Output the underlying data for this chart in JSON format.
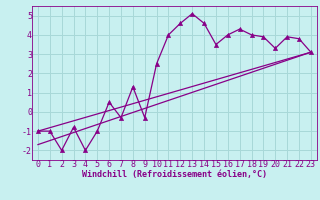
{
  "bg_color": "#c8f0f0",
  "grid_color": "#a8d8d8",
  "line_color": "#880088",
  "xlim": [
    -0.5,
    23.5
  ],
  "ylim": [
    -2.5,
    5.5
  ],
  "xticks": [
    0,
    1,
    2,
    3,
    4,
    5,
    6,
    7,
    8,
    9,
    10,
    11,
    12,
    13,
    14,
    15,
    16,
    17,
    18,
    19,
    20,
    21,
    22,
    23
  ],
  "yticks": [
    -2,
    -1,
    0,
    1,
    2,
    3,
    4,
    5
  ],
  "xlabel": "Windchill (Refroidissement éolien,°C)",
  "xlabel_fontsize": 6.0,
  "tick_fontsize": 6.0,
  "data_x": [
    0,
    1,
    2,
    3,
    4,
    5,
    6,
    7,
    8,
    9,
    10,
    11,
    12,
    13,
    14,
    15,
    16,
    17,
    18,
    19,
    20,
    21,
    22,
    23
  ],
  "data_y": [
    -1.0,
    -1.0,
    -2.0,
    -0.8,
    -2.0,
    -1.0,
    0.5,
    -0.3,
    1.3,
    -0.3,
    2.5,
    4.0,
    4.6,
    5.1,
    4.6,
    3.5,
    4.0,
    4.3,
    4.0,
    3.9,
    3.3,
    3.9,
    3.8,
    3.1
  ],
  "line1_x": [
    0,
    23
  ],
  "line1_y": [
    -1.0,
    3.1
  ],
  "line2_x": [
    0,
    23
  ],
  "line2_y": [
    -1.7,
    3.1
  ]
}
